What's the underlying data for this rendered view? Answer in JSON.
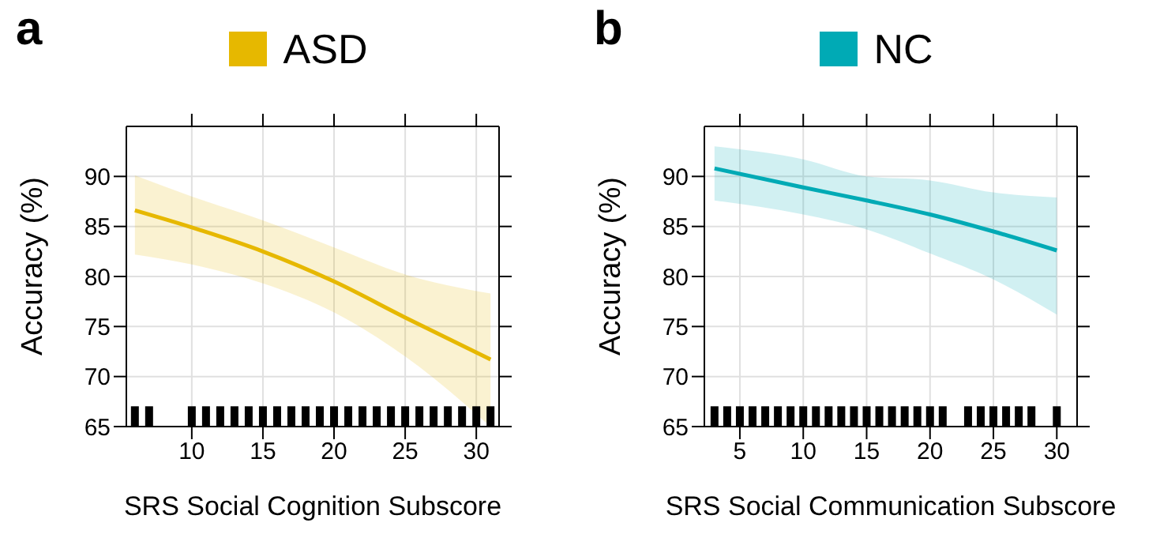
{
  "chart_data": [
    {
      "type": "line",
      "title": "a",
      "xlabel": "SRS Social Cognition Subscore",
      "ylabel": "Accuracy (%)",
      "xlim": [
        5.4,
        31.6
      ],
      "xticks": [
        10,
        15,
        20,
        25,
        30
      ],
      "ylim": [
        65,
        95
      ],
      "yticks": [
        65,
        70,
        75,
        80,
        85,
        90
      ],
      "grid": true,
      "legend": "top",
      "marker": "none",
      "line_style": "solid",
      "series": [
        {
          "name": "ASD",
          "color": "#e6b800",
          "x": [
            6,
            10,
            15,
            20,
            25,
            31
          ],
          "values": [
            86.6,
            84.9,
            82.5,
            79.5,
            75.9,
            71.7
          ],
          "lower": [
            82.2,
            81.2,
            79.3,
            76.4,
            72.0,
            65
          ],
          "upper": [
            90.1,
            88.0,
            85.6,
            82.9,
            80.2,
            78.3
          ]
        },
        {
          "type": "scatter",
          "color": "#000000",
          "marker": "square",
          "x": [
            6,
            7,
            10,
            11,
            12,
            13,
            14,
            15,
            16,
            17,
            18,
            19,
            20,
            21,
            22,
            23,
            24,
            25,
            26,
            27,
            28,
            29,
            30,
            31
          ],
          "values": [
            66,
            66,
            66,
            66,
            66,
            66,
            66,
            66,
            66,
            66,
            66,
            66,
            66,
            66,
            66,
            66,
            66,
            66,
            66,
            66,
            66,
            66,
            66,
            66
          ]
        }
      ]
    },
    {
      "type": "line",
      "title": "b",
      "xlabel": "SRS Social Communication Subscore",
      "ylabel": "Accuracy (%)",
      "xlim": [
        2.2,
        31.6
      ],
      "xticks": [
        5,
        10,
        15,
        20,
        25,
        30
      ],
      "ylim": [
        65,
        95
      ],
      "yticks": [
        65,
        70,
        75,
        80,
        85,
        90
      ],
      "grid": true,
      "legend": "top",
      "marker": "none",
      "line_style": "solid",
      "series": [
        {
          "name": "NC",
          "color": "#00aab5",
          "x": [
            3,
            10,
            15,
            20,
            25,
            30
          ],
          "values": [
            90.8,
            88.9,
            87.6,
            86.2,
            84.5,
            82.6
          ],
          "lower": [
            87.6,
            86.2,
            84.7,
            82.3,
            79.7,
            76.2
          ],
          "upper": [
            93.0,
            91.7,
            90.0,
            89.6,
            88.4,
            87.9
          ]
        },
        {
          "type": "scatter",
          "color": "#000000",
          "marker": "square",
          "x": [
            3,
            4,
            5,
            6,
            7,
            8,
            9,
            10,
            11,
            12,
            13,
            14,
            15,
            16,
            17,
            18,
            19,
            20,
            21,
            23,
            24,
            25,
            26,
            27,
            28,
            30
          ],
          "values": [
            66,
            66,
            66,
            66,
            66,
            66,
            66,
            66,
            66,
            66,
            66,
            66,
            66,
            66,
            66,
            66,
            66,
            66,
            66,
            66,
            66,
            66,
            66,
            66,
            66,
            66
          ]
        }
      ]
    }
  ]
}
